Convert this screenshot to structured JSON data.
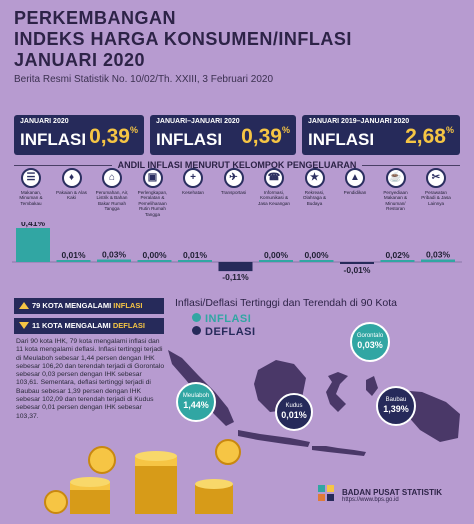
{
  "header": {
    "line1": "PERKEMBANGAN",
    "line2": "INDEKS HARGA KONSUMEN/INFLASI",
    "line3": "JANUARI 2020",
    "subtitle": "Berita Resmi Statistik No. 10/02/Th. XXIII, 3 Februari 2020"
  },
  "boxes": [
    {
      "period": "JANUARI 2020",
      "label": "INFLASI",
      "value": "0,39",
      "unit": "%"
    },
    {
      "period": "JANUARI–JANUARI 2020",
      "label": "INFLASI",
      "value": "0,39",
      "unit": "%"
    },
    {
      "period": "JANUARI 2019–JANUARI 2020",
      "label": "INFLASI",
      "value": "2,68",
      "unit": "%"
    }
  ],
  "group_title": "ANDIL INFLASI MENURUT KELOMPOK PENGELUARAN",
  "categories": [
    {
      "label": "Makanan, Minuman & Tembakau",
      "icon": "food-basket-icon",
      "glyph": "☰"
    },
    {
      "label": "Pakaian & Alas Kaki",
      "icon": "dress-icon",
      "glyph": "♦"
    },
    {
      "label": "Perumahan, Air, Listrik & Bahan Bakar Rumah Tangga",
      "icon": "house-icon",
      "glyph": "⌂"
    },
    {
      "label": "Perlengkapan, Peralatan & Pemeliharaan Rutin Rumah Tangga",
      "icon": "appliance-icon",
      "glyph": "▣"
    },
    {
      "label": "Kesehatan",
      "icon": "medical-kit-icon",
      "glyph": "+"
    },
    {
      "label": "Transportasi",
      "icon": "airplane-icon",
      "glyph": "✈"
    },
    {
      "label": "Informasi, Komunikasi & Jasa Keuangan",
      "icon": "phone-icon",
      "glyph": "☎"
    },
    {
      "label": "Rekreasi, Olahraga & Budaya",
      "icon": "runner-icon",
      "glyph": "★"
    },
    {
      "label": "Pendidikan",
      "icon": "graduation-cap-icon",
      "glyph": "▲"
    },
    {
      "label": "Penyediaan Makanan & Minuman/ Restoran",
      "icon": "restaurant-icon",
      "glyph": "☕"
    },
    {
      "label": "Perawatan Pribadi & Jasa Lainnya",
      "icon": "tools-icon",
      "glyph": "✂"
    }
  ],
  "chart_data": {
    "type": "bar",
    "categories": [
      "Makanan, Minuman & Tembakau",
      "Pakaian & Alas Kaki",
      "Perumahan, Air, Listrik & Bahan Bakar Rumah Tangga",
      "Perlengkapan, Peralatan & Pemeliharaan Rutin Rumah Tangga",
      "Kesehatan",
      "Transportasi",
      "Informasi, Komunikasi & Jasa Keuangan",
      "Rekreasi, Olahraga & Budaya",
      "Pendidikan",
      "Penyediaan Makanan & Minuman/ Restoran",
      "Perawatan Pribadi & Jasa Lainnya"
    ],
    "values": [
      0.41,
      0.01,
      0.03,
      0.0,
      0.01,
      -0.11,
      0.0,
      0.0,
      -0.01,
      0.02,
      0.03
    ],
    "labels": [
      "0,41%",
      "0,01%",
      "0,03%",
      "0,00%",
      "0,01%",
      "-0,11%",
      "0,00%",
      "0,00%",
      "-0,01%",
      "0,02%",
      "0,03%"
    ],
    "title": "ANDIL INFLASI MENURUT KELOMPOK PENGELUARAN",
    "xlabel": "",
    "ylabel": "",
    "ylim": [
      -0.15,
      0.45
    ],
    "colors": {
      "positive": "#31a6a3",
      "negative": "#262a5a"
    }
  },
  "stats": {
    "inflation_count": "79 KOTA MENGALAMI",
    "inflation_word": "INFLASI",
    "deflation_count": "11 KOTA MENGALAMI",
    "deflation_word": "DEFLASI"
  },
  "description": "Dari 90 kota IHK, 79 kota mengalami inflasi dan 11 kota mengalami deflasi. Inflasi tertinggi terjadi di Meulaboh sebesar 1,44 persen dengan IHK sebesar 106,20 dan terendah terjadi di Gorontalo sebesar 0,03 persen dengan IHK sebesar 103,61. Sementara, deflasi tertinggi terjadi di Baubau sebesar 1,39 persen dengan IHK sebesar 102,09 dan terendah terjadi di Kudus sebesar 0,01 persen dengan IHK sebesar 103,37.",
  "map": {
    "title": "Inflasi/Deflasi Tertinggi dan Terendah di 90 Kota",
    "legend_inflasi": "INFLASI",
    "legend_deflasi": "DEFLASI",
    "cities": [
      {
        "name": "Meulaboh",
        "value": "1,44%",
        "type": "inflasi"
      },
      {
        "name": "Gorontalo",
        "value": "0,03%",
        "type": "inflasi"
      },
      {
        "name": "Kudus",
        "value": "0,01%",
        "type": "deflasi"
      },
      {
        "name": "Baubau",
        "value": "1,39%",
        "type": "deflasi"
      }
    ]
  },
  "footer": {
    "org": "BADAN PUSAT STATISTIK",
    "url": "https://www.bps.go.id"
  },
  "colors": {
    "background": "#b79bd0",
    "navy": "#262a5a",
    "teal": "#31a6a3",
    "gold": "#f6c544"
  }
}
